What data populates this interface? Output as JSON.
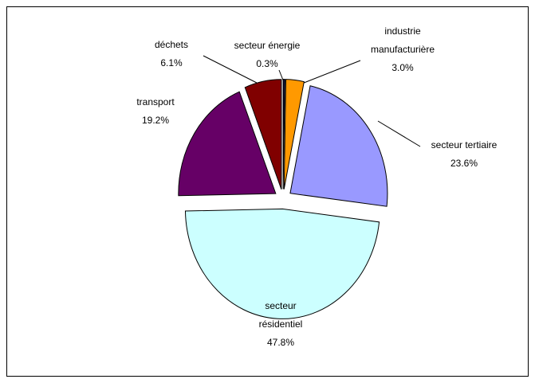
{
  "chart_data": {
    "type": "pie",
    "categories": [
      "secteur énergie",
      "industrie manufacturière",
      "secteur tertiaire",
      "secteur résidentiel",
      "transport",
      "déchets"
    ],
    "values": [
      0.3,
      3.0,
      23.6,
      47.8,
      19.2,
      6.1
    ],
    "value_labels": [
      "0.3%",
      "3.0%",
      "23.6%",
      "47.8%",
      "19.2%",
      "6.1%"
    ],
    "colors": [
      "#000033",
      "#ff9900",
      "#9999ff",
      "#ccffff",
      "#660066",
      "#800000"
    ]
  }
}
